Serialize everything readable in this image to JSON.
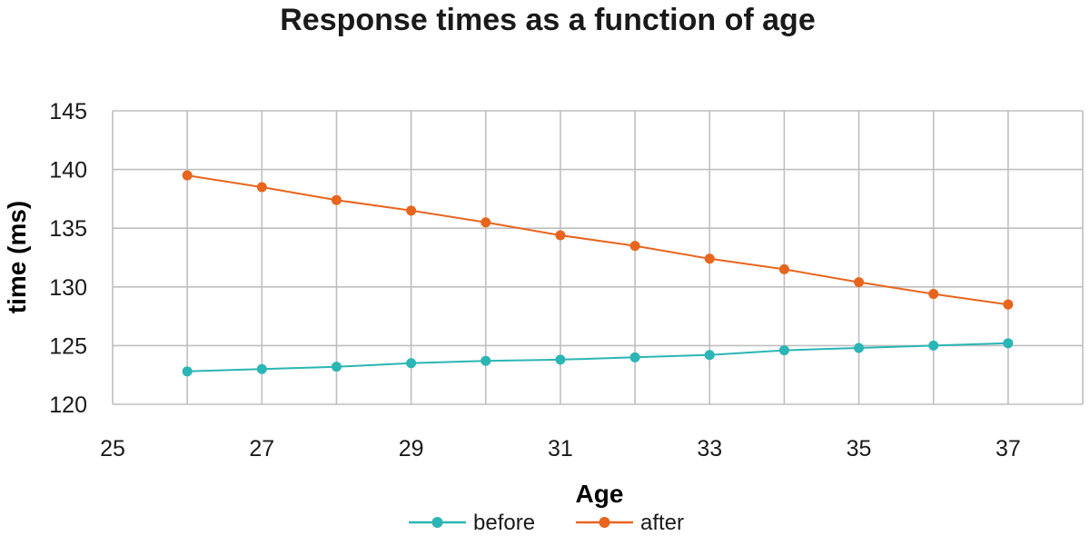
{
  "chart_data": {
    "type": "line",
    "title": "Response times as a function of age",
    "xlabel": "Age",
    "ylabel": "time (ms)",
    "xlim": [
      25,
      38
    ],
    "ylim": [
      120,
      145
    ],
    "xticks": [
      "25",
      "27",
      "29",
      "31",
      "33",
      "35",
      "37"
    ],
    "xtick_values": [
      25,
      27,
      29,
      31,
      33,
      35,
      37
    ],
    "yticks": [
      "120",
      "125",
      "130",
      "135",
      "140",
      "145"
    ],
    "ytick_values": [
      120,
      125,
      130,
      135,
      140,
      145
    ],
    "grid": true,
    "legend_position": "bottom",
    "x": [
      26,
      27,
      28,
      29,
      30,
      31,
      32,
      33,
      34,
      35,
      36,
      37
    ],
    "series": [
      {
        "name": "before",
        "color": "#2bb5b5",
        "marker": "circle",
        "values": [
          122.8,
          123.0,
          123.2,
          123.5,
          123.7,
          123.8,
          124.0,
          124.2,
          124.6,
          124.8,
          125.0,
          125.2
        ]
      },
      {
        "name": "after",
        "color": "#e8651e",
        "marker": "circle",
        "values": [
          139.5,
          138.5,
          137.4,
          136.5,
          135.5,
          134.4,
          133.5,
          132.4,
          131.5,
          130.4,
          129.4,
          128.5
        ]
      }
    ]
  }
}
